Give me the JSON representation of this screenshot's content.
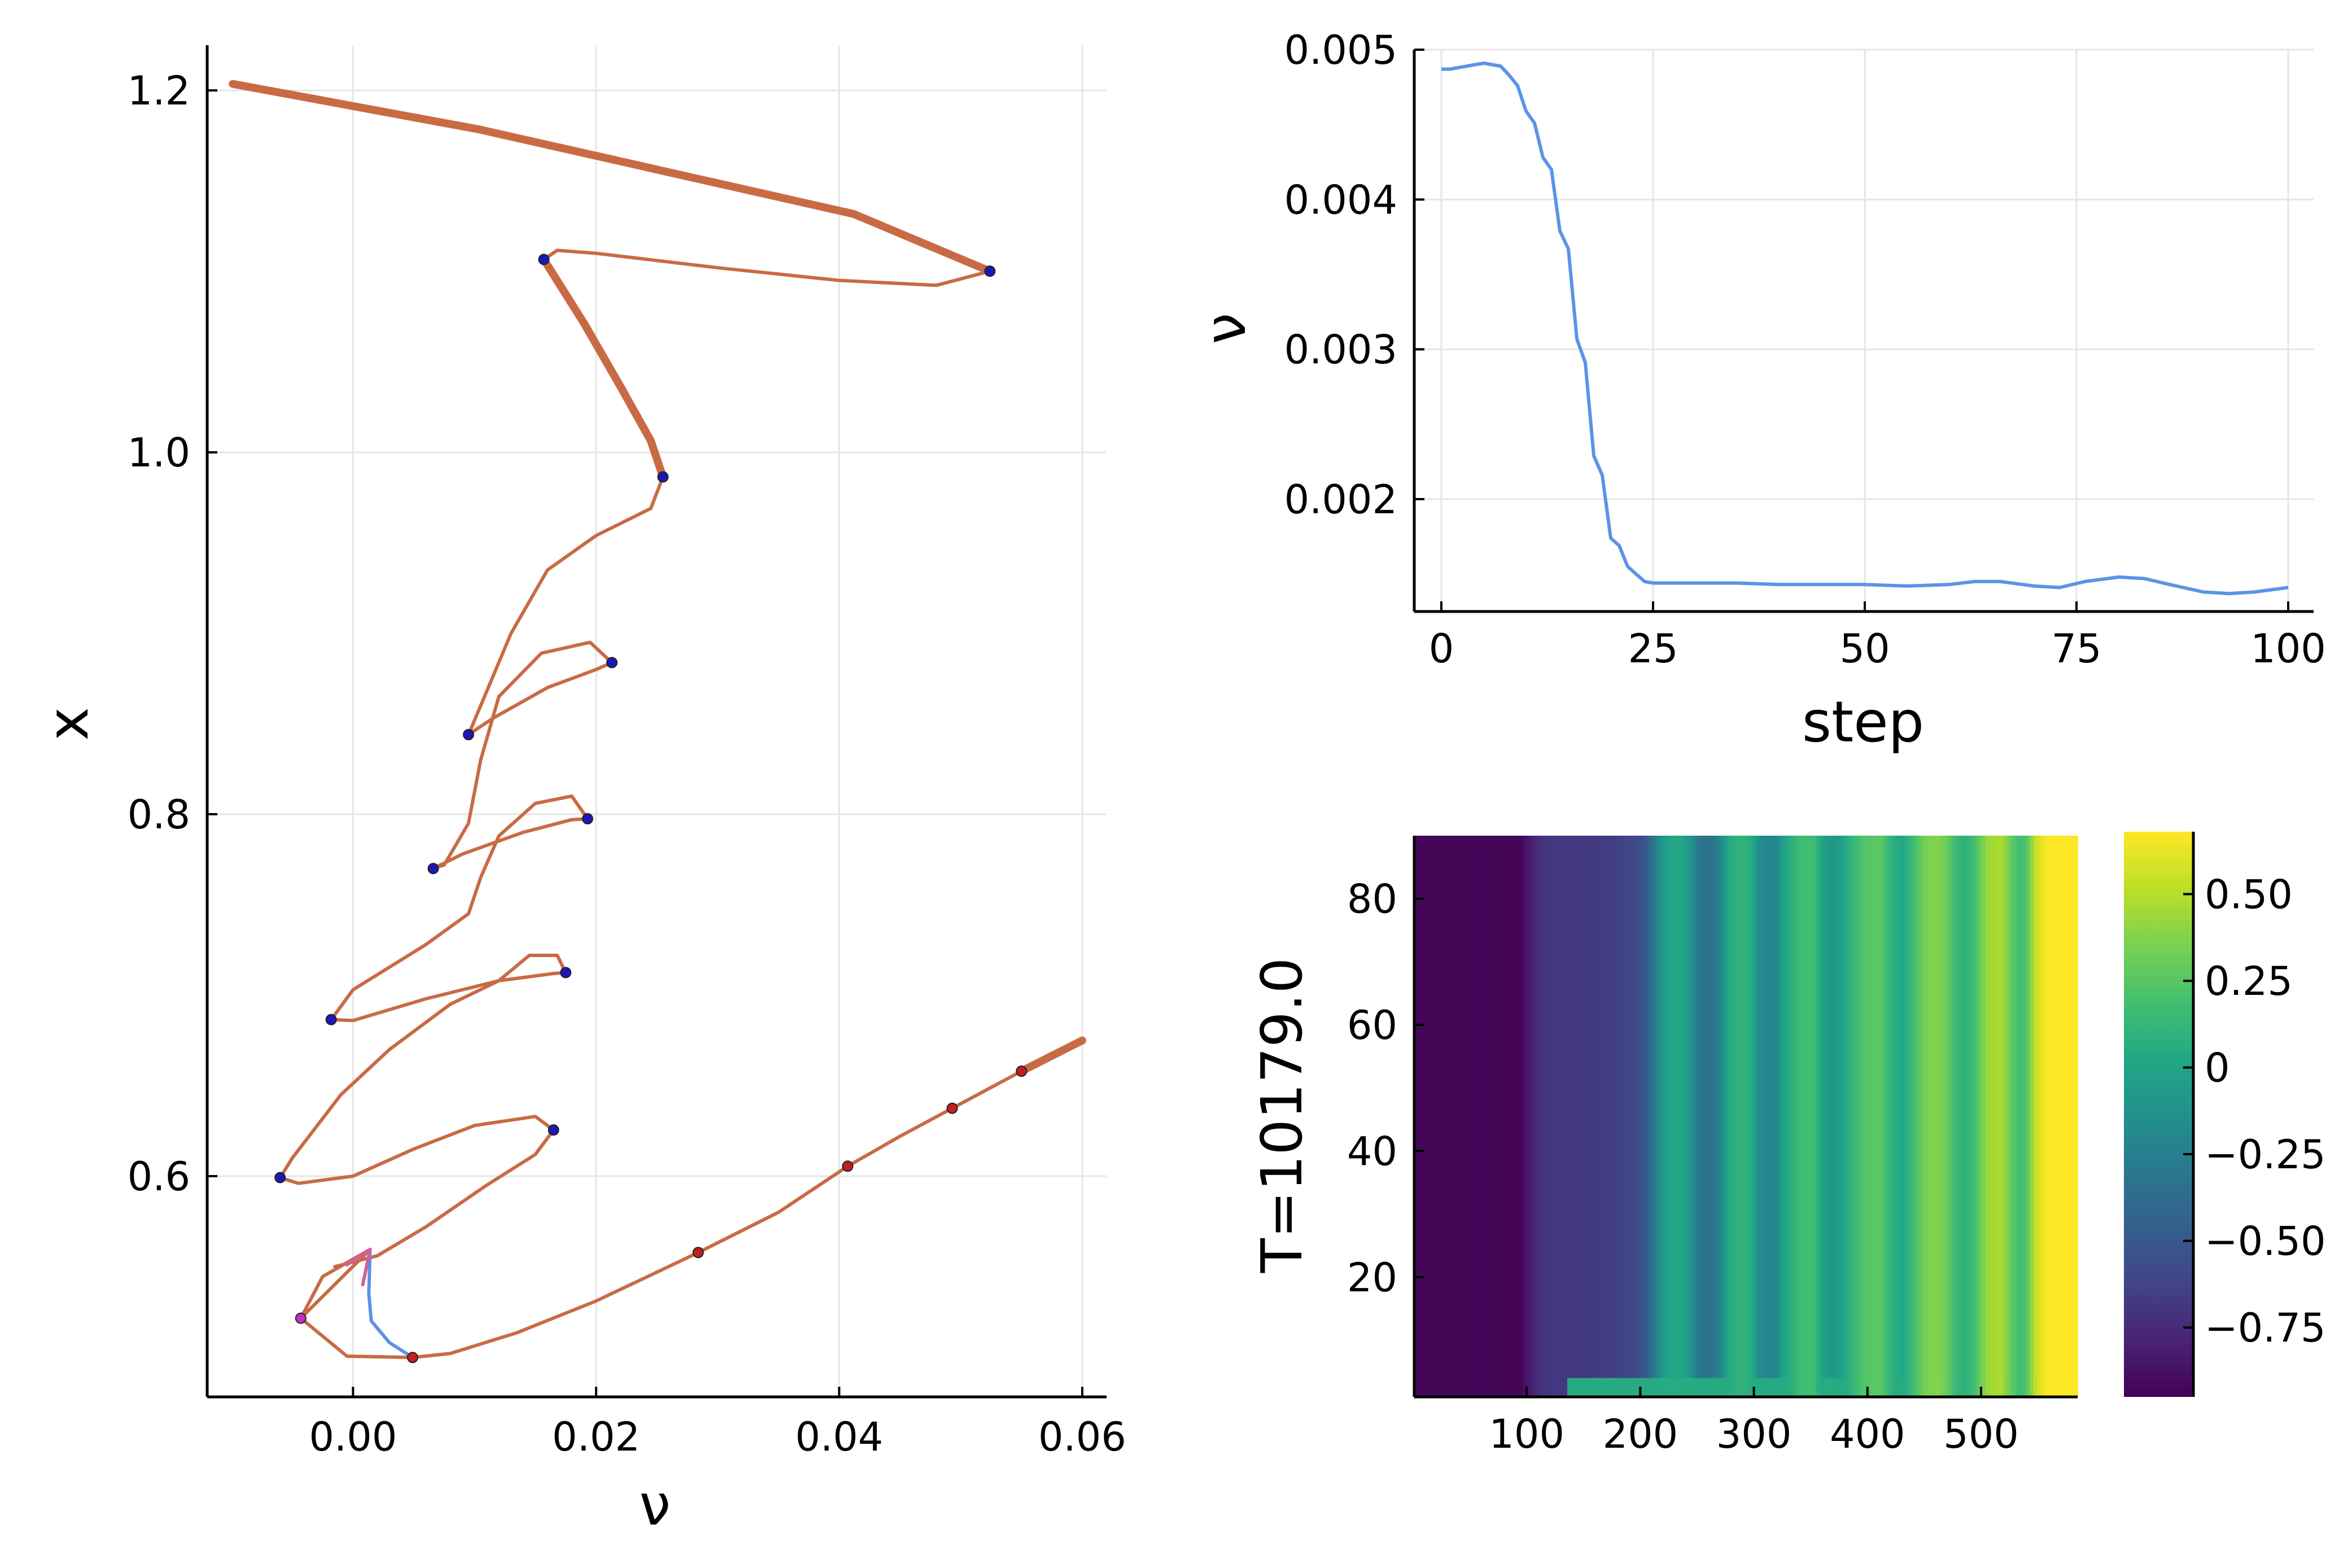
{
  "chart_data": [
    {
      "id": "bifurcation",
      "type": "line",
      "xlabel": "ν",
      "ylabel": "x",
      "xlim": [
        -0.012,
        0.062
      ],
      "ylim": [
        0.478,
        1.225
      ],
      "grid": true,
      "legend": "none",
      "x_ticks": [
        {
          "value": 0.0,
          "label": "0.00"
        },
        {
          "value": 0.02,
          "label": "0.02"
        },
        {
          "value": 0.04,
          "label": "0.04"
        },
        {
          "value": 0.06,
          "label": "0.06"
        }
      ],
      "y_ticks": [
        {
          "value": 0.6,
          "label": "0.6"
        },
        {
          "value": 0.8,
          "label": "0.8"
        },
        {
          "value": 1.0,
          "label": "1.0"
        },
        {
          "value": 1.2,
          "label": "1.2"
        }
      ],
      "series": [
        {
          "color": "#c86b45",
          "style": "thick",
          "points": [
            [
              -0.0099,
              1.2036
            ],
            [
              0.0104,
              1.1784
            ],
            [
              0.0412,
              1.1317
            ],
            [
              0.0524,
              1.1001
            ]
          ]
        },
        {
          "color": "#c86b45",
          "style": "thin",
          "points": [
            [
              0.0524,
              1.1001
            ],
            [
              0.048,
              1.0923
            ],
            [
              0.04,
              1.095
            ],
            [
              0.03,
              1.102
            ],
            [
              0.02,
              1.11
            ],
            [
              0.0168,
              1.1116
            ],
            [
              0.0157,
              1.1066
            ]
          ]
        },
        {
          "color": "#c86b45",
          "style": "thick",
          "points": [
            [
              0.0157,
              1.1066
            ],
            [
              0.019,
              1.0714
            ],
            [
              0.022,
              1.0364
            ],
            [
              0.0245,
              1.0064
            ],
            [
              0.0255,
              0.9864
            ]
          ]
        },
        {
          "color": "#c86b45",
          "style": "thin",
          "points": [
            [
              0.0255,
              0.9864
            ],
            [
              0.0245,
              0.969
            ],
            [
              0.02,
              0.954
            ],
            [
              0.016,
              0.935
            ],
            [
              0.013,
              0.9
            ],
            [
              0.0105,
              0.86
            ],
            [
              0.0095,
              0.844
            ],
            [
              0.0115,
              0.853
            ],
            [
              0.016,
              0.87
            ],
            [
              0.02,
              0.88
            ],
            [
              0.0213,
              0.8838
            ],
            [
              0.0195,
              0.895
            ],
            [
              0.0155,
              0.889
            ],
            [
              0.012,
              0.865
            ],
            [
              0.0105,
              0.83
            ],
            [
              0.0095,
              0.795
            ],
            [
              0.0075,
              0.772
            ],
            [
              0.0066,
              0.77
            ],
            [
              0.009,
              0.778
            ],
            [
              0.014,
              0.79
            ],
            [
              0.018,
              0.797
            ],
            [
              0.0193,
              0.7975
            ],
            [
              0.018,
              0.81
            ],
            [
              0.015,
              0.806
            ],
            [
              0.012,
              0.788
            ],
            [
              0.0105,
              0.765
            ],
            [
              0.0095,
              0.745
            ],
            [
              0.006,
              0.728
            ],
            [
              0.0,
              0.703
            ],
            [
              -0.0018,
              0.6865
            ],
            [
              0.0,
              0.686
            ],
            [
              0.006,
              0.698
            ],
            [
              0.012,
              0.708
            ],
            [
              0.0165,
              0.712
            ],
            [
              0.0175,
              0.7125
            ],
            [
              0.0168,
              0.722
            ],
            [
              0.0145,
              0.722
            ],
            [
              0.012,
              0.708
            ],
            [
              0.008,
              0.695
            ],
            [
              0.003,
              0.67
            ],
            [
              -0.001,
              0.645
            ],
            [
              -0.005,
              0.61
            ],
            [
              -0.006,
              0.5992
            ],
            [
              -0.0045,
              0.596
            ],
            [
              0.0,
              0.6
            ],
            [
              0.005,
              0.615
            ],
            [
              0.01,
              0.628
            ],
            [
              0.015,
              0.633
            ],
            [
              0.0165,
              0.6255
            ],
            [
              0.015,
              0.612
            ],
            [
              0.011,
              0.595
            ],
            [
              0.006,
              0.572
            ],
            [
              0.002,
              0.556
            ],
            [
              -0.0015,
              0.55
            ]
          ]
        },
        {
          "color": "#c86b45",
          "style": "thin",
          "points": [
            [
              -0.0043,
              0.5215
            ],
            [
              -0.0025,
              0.5445
            ],
            [
              0.0014,
              0.5595
            ],
            [
              -0.0043,
              0.5215
            ],
            [
              -0.0005,
              0.5005
            ],
            [
              0.0049,
              0.4998
            ],
            [
              0.008,
              0.502
            ],
            [
              0.0135,
              0.5135
            ],
            [
              0.02,
              0.531
            ],
            [
              0.0284,
              0.5578
            ],
            [
              0.035,
              0.58
            ],
            [
              0.0407,
              0.6055
            ],
            [
              0.045,
              0.622
            ],
            [
              0.0493,
              0.6375
            ],
            [
              0.055,
              0.658
            ]
          ]
        },
        {
          "color": "#c86b45",
          "style": "thick",
          "points": [
            [
              0.055,
              0.658
            ],
            [
              0.06,
              0.675
            ]
          ]
        },
        {
          "color": "#5b93e6",
          "style": "thin",
          "points": [
            [
              0.0049,
              0.4998
            ],
            [
              0.003,
              0.508
            ],
            [
              0.0015,
              0.52
            ],
            [
              0.0013,
              0.535
            ],
            [
              0.0014,
              0.5595
            ]
          ]
        },
        {
          "color": "#d45fa0",
          "style": "thin",
          "points": [
            [
              0.0008,
              0.54
            ],
            [
              0.0014,
              0.5595
            ],
            [
              -0.0005,
              0.551
            ]
          ]
        }
      ],
      "markers": [
        {
          "x": 0.0524,
          "y": 1.1001,
          "color": "#1a18b8"
        },
        {
          "x": 0.0157,
          "y": 1.1066,
          "color": "#1a18b8"
        },
        {
          "x": 0.0255,
          "y": 0.9864,
          "color": "#1a18b8"
        },
        {
          "x": 0.0213,
          "y": 0.8838,
          "color": "#1a18b8"
        },
        {
          "x": 0.0095,
          "y": 0.844,
          "color": "#1a18b8"
        },
        {
          "x": 0.0193,
          "y": 0.7975,
          "color": "#1a18b8"
        },
        {
          "x": 0.0066,
          "y": 0.77,
          "color": "#1a18b8"
        },
        {
          "x": 0.0175,
          "y": 0.7125,
          "color": "#1a18b8"
        },
        {
          "x": -0.0018,
          "y": 0.6865,
          "color": "#1a18b8"
        },
        {
          "x": 0.0165,
          "y": 0.6255,
          "color": "#1a18b8"
        },
        {
          "x": -0.006,
          "y": 0.5992,
          "color": "#1a18b8"
        },
        {
          "x": -0.0043,
          "y": 0.5215,
          "color": "#c22ec2"
        },
        {
          "x": 0.0049,
          "y": 0.4998,
          "color": "#c02020"
        },
        {
          "x": 0.0284,
          "y": 0.5578,
          "color": "#c02020"
        },
        {
          "x": 0.0407,
          "y": 0.6055,
          "color": "#c02020"
        },
        {
          "x": 0.0493,
          "y": 0.6375,
          "color": "#c02020"
        },
        {
          "x": 0.055,
          "y": 0.658,
          "color": "#c02020"
        }
      ]
    },
    {
      "id": "nu-history",
      "type": "line",
      "xlabel": "step",
      "ylabel": "ν",
      "xlim": [
        -3.2,
        103
      ],
      "ylim": [
        0.00125,
        0.005
      ],
      "grid": true,
      "legend": "none",
      "x_ticks": [
        {
          "value": 0,
          "label": "0"
        },
        {
          "value": 25,
          "label": "25"
        },
        {
          "value": 50,
          "label": "50"
        },
        {
          "value": 75,
          "label": "75"
        },
        {
          "value": 100,
          "label": "100"
        }
      ],
      "y_ticks": [
        {
          "value": 0.002,
          "label": "0.002"
        },
        {
          "value": 0.003,
          "label": "0.003"
        },
        {
          "value": 0.004,
          "label": "0.004"
        },
        {
          "value": 0.005,
          "label": "0.005"
        }
      ],
      "series": [
        {
          "color": "#5b93e6",
          "x": [
            0,
            1,
            2,
            3,
            4,
            5,
            6,
            7,
            8,
            9,
            10,
            11,
            12,
            13,
            14,
            15,
            16,
            17,
            18,
            19,
            20,
            21,
            22,
            23,
            24,
            25,
            30,
            35,
            40,
            45,
            50,
            55,
            60,
            63,
            66,
            70,
            73,
            76,
            80,
            83,
            86,
            90,
            93,
            96,
            100
          ],
          "y": [
            0.00487,
            0.00487,
            0.00488,
            0.00489,
            0.0049,
            0.00491,
            0.0049,
            0.00489,
            0.00483,
            0.00476,
            0.00459,
            0.00451,
            0.00428,
            0.0042,
            0.00379,
            0.00367,
            0.00307,
            0.00291,
            0.00229,
            0.00216,
            0.00174,
            0.00169,
            0.00155,
            0.0015,
            0.00145,
            0.00144,
            0.00144,
            0.00144,
            0.00143,
            0.00143,
            0.00143,
            0.00142,
            0.00143,
            0.00145,
            0.00145,
            0.00142,
            0.00141,
            0.00145,
            0.00148,
            0.00147,
            0.00143,
            0.00138,
            0.00137,
            0.00138,
            0.00141
          ]
        }
      ]
    },
    {
      "id": "heatmap",
      "type": "heatmap",
      "ylabel": "T=10179.0",
      "xlabel": "",
      "xlim": [
        1,
        585
      ],
      "ylim": [
        1,
        90
      ],
      "x_ticks": [
        {
          "value": 100,
          "label": "100"
        },
        {
          "value": 200,
          "label": "200"
        },
        {
          "value": 300,
          "label": "300"
        },
        {
          "value": 400,
          "label": "400"
        },
        {
          "value": 500,
          "label": "500"
        }
      ],
      "y_ticks": [
        {
          "value": 20,
          "label": "20"
        },
        {
          "value": 40,
          "label": "40"
        },
        {
          "value": 60,
          "label": "60"
        },
        {
          "value": 80,
          "label": "80"
        }
      ],
      "colorscale": "viridis",
      "clim": [
        -0.95,
        0.68
      ],
      "colorbar_ticks": [
        {
          "value": 0.5,
          "label": "0.50"
        },
        {
          "value": 0.25,
          "label": "0.25"
        },
        {
          "value": 0.0,
          "label": "0"
        },
        {
          "value": -0.25,
          "label": "−0.25"
        },
        {
          "value": -0.5,
          "label": "−0.50"
        },
        {
          "value": -0.75,
          "label": "−0.75"
        }
      ],
      "column_profile": [
        [
          1,
          -0.93
        ],
        [
          95,
          -0.93
        ],
        [
          105,
          -0.8
        ],
        [
          115,
          -0.7
        ],
        [
          140,
          -0.68
        ],
        [
          175,
          -0.66
        ],
        [
          195,
          -0.6
        ],
        [
          205,
          -0.5
        ],
        [
          212,
          -0.3
        ],
        [
          220,
          -0.08
        ],
        [
          228,
          0.02
        ],
        [
          236,
          0.02
        ],
        [
          244,
          -0.1
        ],
        [
          252,
          -0.32
        ],
        [
          262,
          -0.34
        ],
        [
          270,
          -0.22
        ],
        [
          278,
          0.04
        ],
        [
          288,
          0.12
        ],
        [
          298,
          0.05
        ],
        [
          306,
          -0.18
        ],
        [
          314,
          -0.22
        ],
        [
          320,
          -0.2
        ],
        [
          328,
          0.02
        ],
        [
          340,
          0.16
        ],
        [
          352,
          0.18
        ],
        [
          362,
          -0.04
        ],
        [
          372,
          -0.1
        ],
        [
          385,
          0.1
        ],
        [
          398,
          0.24
        ],
        [
          412,
          0.27
        ],
        [
          420,
          0.1
        ],
        [
          430,
          0.02
        ],
        [
          438,
          0.12
        ],
        [
          450,
          0.34
        ],
        [
          462,
          0.38
        ],
        [
          470,
          0.3
        ],
        [
          478,
          0.14
        ],
        [
          486,
          0.08
        ],
        [
          494,
          0.18
        ],
        [
          506,
          0.44
        ],
        [
          518,
          0.48
        ],
        [
          526,
          0.3
        ],
        [
          534,
          0.16
        ],
        [
          540,
          0.22
        ],
        [
          548,
          0.55
        ],
        [
          558,
          0.68
        ],
        [
          585,
          0.68
        ]
      ],
      "bottom_band": {
        "y_max": 4,
        "value": 0.05,
        "start_x": 135
      }
    }
  ]
}
